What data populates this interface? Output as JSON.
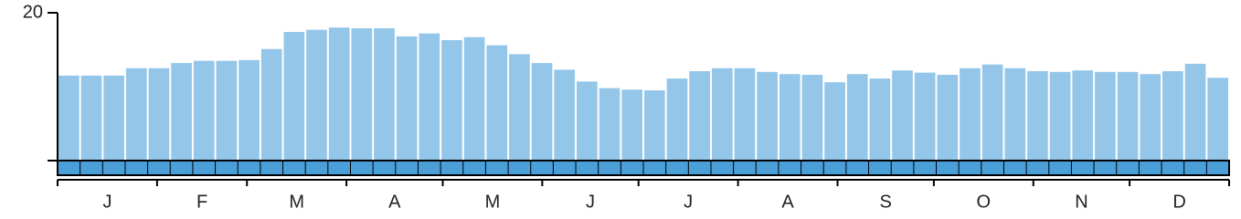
{
  "chart_data": {
    "type": "bar",
    "categories": [
      null,
      null,
      null,
      null,
      null,
      null,
      null,
      null,
      null,
      null,
      null,
      null,
      null,
      null,
      null,
      null,
      null,
      null,
      null,
      null,
      null,
      null,
      null,
      null,
      null,
      null,
      null,
      null,
      null,
      null,
      null,
      null,
      null,
      null,
      null,
      null,
      null,
      null,
      null,
      null,
      null,
      null,
      null,
      null,
      null,
      null,
      null,
      null,
      null,
      null,
      null,
      null
    ],
    "values": [
      11.5,
      11.5,
      11.5,
      12.5,
      12.5,
      13.2,
      13.5,
      13.5,
      13.6,
      15.1,
      17.4,
      17.7,
      18.0,
      17.9,
      17.9,
      16.8,
      17.2,
      16.3,
      16.7,
      15.6,
      14.4,
      13.2,
      12.3,
      10.7,
      9.8,
      9.6,
      9.5,
      11.1,
      12.1,
      12.5,
      12.5,
      12.0,
      11.7,
      11.6,
      10.6,
      11.7,
      11.1,
      12.2,
      11.9,
      11.6,
      12.5,
      13.0,
      12.5,
      12.1,
      12.0,
      12.2,
      12.0,
      12.0,
      11.7,
      12.1,
      13.1,
      11.2
    ],
    "month_labels": [
      "J",
      "F",
      "M",
      "A",
      "M",
      "J",
      "J",
      "A",
      "S",
      "O",
      "N",
      "D"
    ],
    "color": "#93c6e8",
    "ylim": [
      0,
      20
    ],
    "yticks": [
      20
    ],
    "grid": false
  }
}
